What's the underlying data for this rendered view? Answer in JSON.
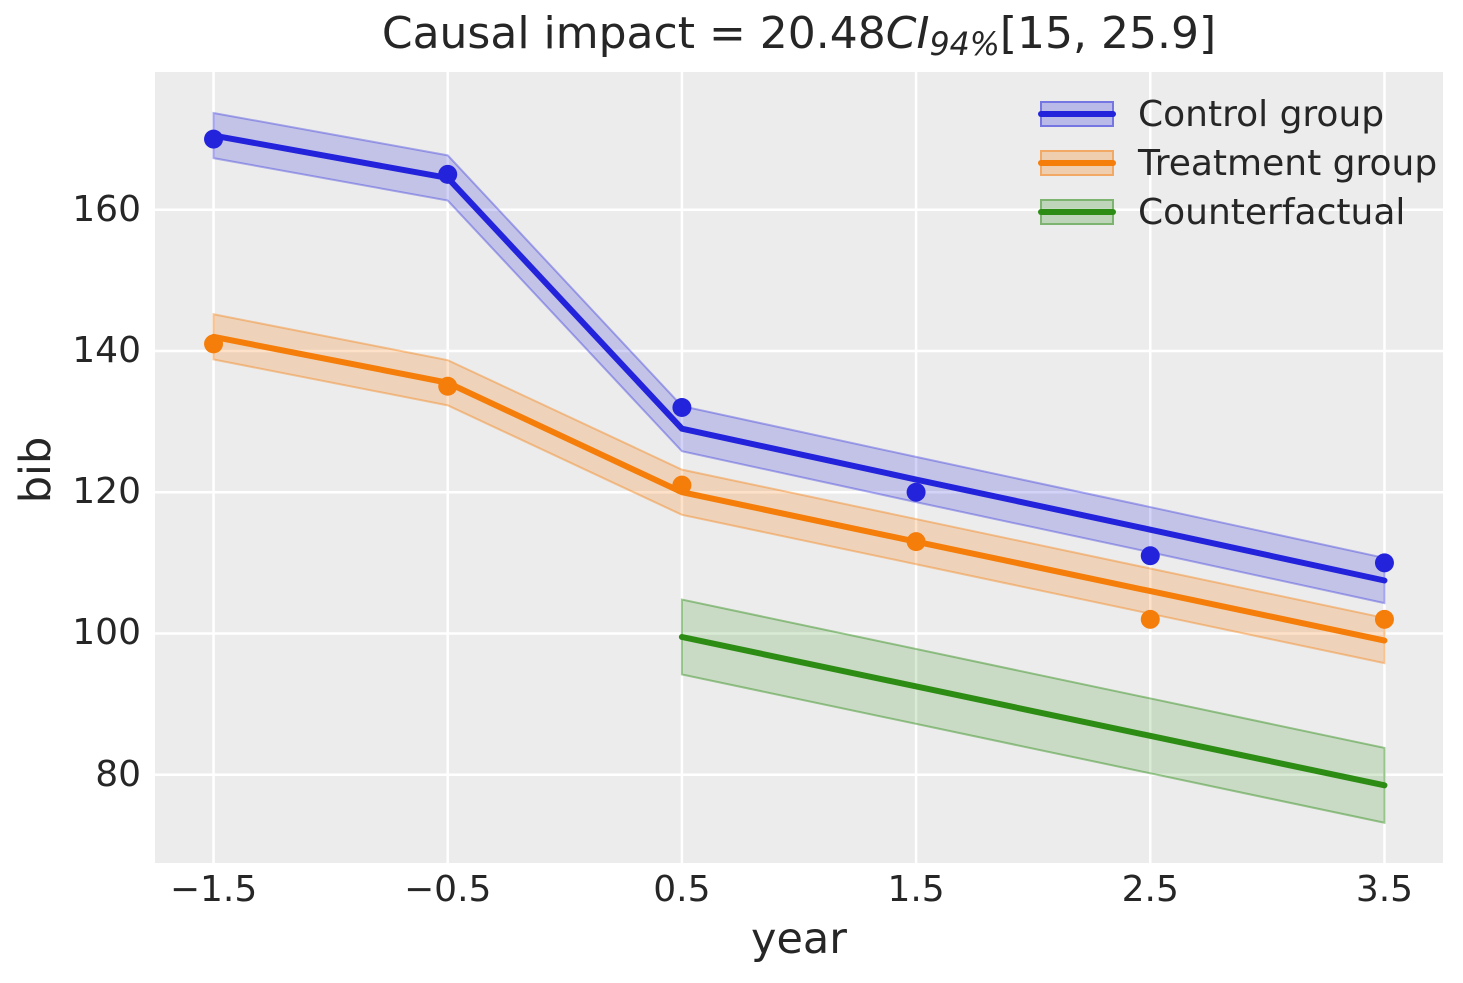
{
  "title_parts": {
    "prefix": "Causal impact = 20.48",
    "ci": "CI",
    "ci_sub": "94%",
    "interval": "[15, 25.9]"
  },
  "axes": {
    "xlabel": "year",
    "ylabel": "bib"
  },
  "legend": {
    "position": "upper right",
    "items": [
      {
        "label": "Control group",
        "color": "#2323dc",
        "band_alpha": 0.2
      },
      {
        "label": "Treatment group",
        "color": "#f57d0a",
        "band_alpha": 0.22
      },
      {
        "label": "Counterfactual",
        "color": "#2d8c14",
        "band_alpha": 0.18
      }
    ]
  },
  "chart_data": {
    "type": "line",
    "title": "Causal impact = 20.48 CI94% [15, 25.9]",
    "xlabel": "year",
    "ylabel": "bib",
    "xlim": [
      -1.75,
      3.75
    ],
    "ylim": [
      67.5,
      179.5
    ],
    "x_ticks": [
      -1.5,
      -0.5,
      0.5,
      1.5,
      2.5,
      3.5
    ],
    "x_tick_labels": [
      "−1.5",
      "−0.5",
      "0.5",
      "1.5",
      "2.5",
      "3.5"
    ],
    "y_ticks": [
      80,
      100,
      120,
      140,
      160
    ],
    "y_tick_labels": [
      "80",
      "100",
      "120",
      "140",
      "160"
    ],
    "grid": true,
    "plot_background": "#ececec",
    "grid_color": "#ffffff",
    "text_color": "#262626",
    "legend_position": "upper right",
    "series": [
      {
        "name": "Control group trend",
        "legend_label": "Control group",
        "type": "line_band",
        "color": "#2323dc",
        "band_alpha": 0.2,
        "band_edge_alpha": 0.35,
        "band_halfwidth": 3.2,
        "x": [
          -1.5,
          -0.5,
          0.5,
          1.5,
          2.5,
          3.5
        ],
        "y": [
          170.5,
          164.5,
          129,
          121.8,
          114.7,
          107.5
        ]
      },
      {
        "name": "Treatment group trend",
        "legend_label": "Treatment group",
        "type": "line_band",
        "color": "#f57d0a",
        "band_alpha": 0.22,
        "band_edge_alpha": 0.4,
        "band_halfwidth": 3.2,
        "x": [
          -1.5,
          -0.5,
          0.5,
          1.5,
          2.5,
          3.5
        ],
        "y": [
          142,
          135.5,
          120,
          113,
          106,
          99
        ]
      },
      {
        "name": "Counterfactual",
        "legend_label": "Counterfactual",
        "type": "line_band",
        "color": "#2d8c14",
        "band_alpha": 0.18,
        "band_edge_alpha": 0.45,
        "band_halfwidth": 5.3,
        "x": [
          0.5,
          3.5
        ],
        "y": [
          99.5,
          78.5
        ]
      },
      {
        "name": "Control group observations",
        "type": "scatter",
        "color": "#2323dc",
        "x": [
          -1.5,
          -0.5,
          0.5,
          1.5,
          2.5,
          3.5
        ],
        "y": [
          170,
          165,
          132,
          120,
          111,
          110
        ]
      },
      {
        "name": "Treatment group observations",
        "type": "scatter",
        "color": "#f57d0a",
        "x": [
          -1.5,
          -0.5,
          0.5,
          1.5,
          2.5,
          3.5
        ],
        "y": [
          141,
          135,
          121,
          113,
          102,
          102
        ]
      }
    ]
  }
}
